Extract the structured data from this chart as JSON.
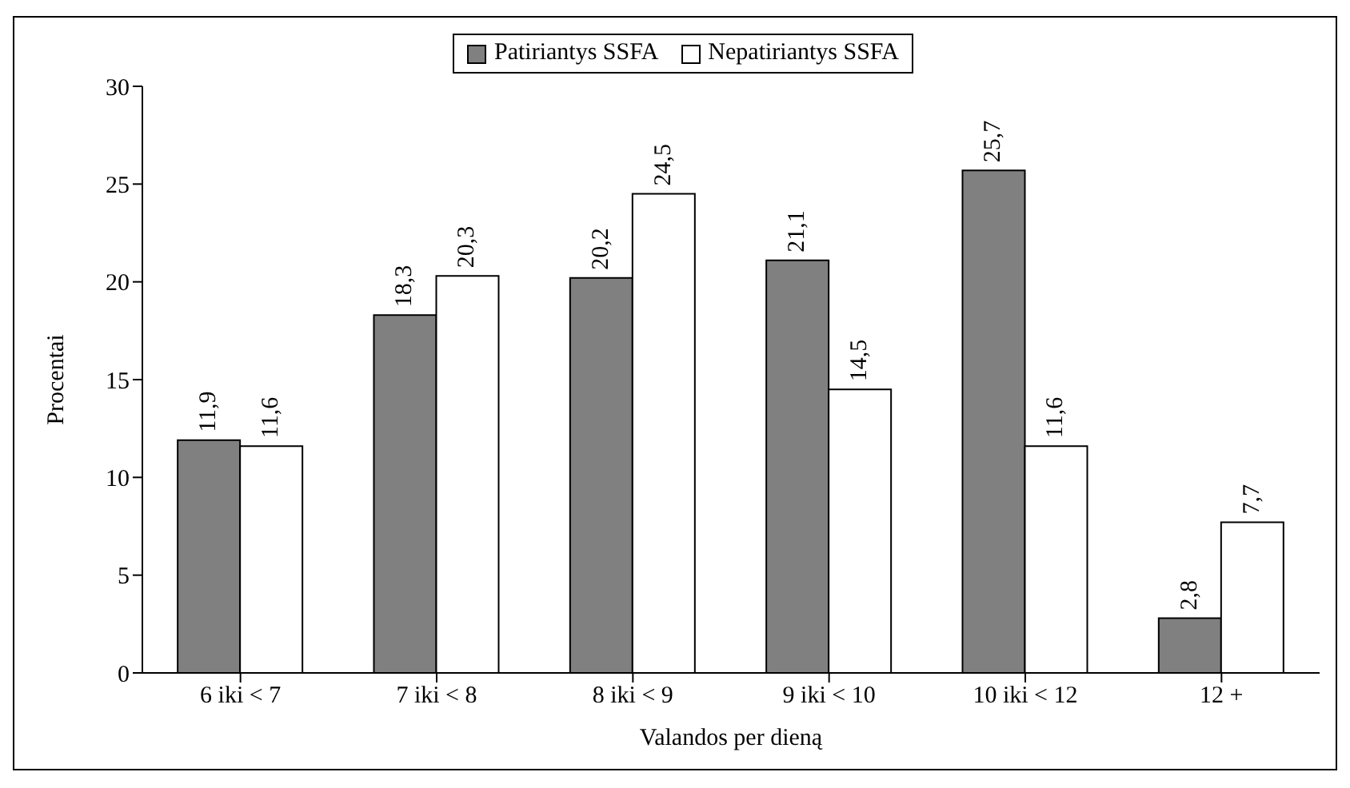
{
  "chart_data": {
    "type": "bar",
    "xlabel": "Valandos per dieną",
    "ylabel": "Procentai",
    "categories": [
      "6 iki < 7",
      "7 iki < 8",
      "8 iki < 9",
      "9 iki < 10",
      "10 iki < 12",
      "12 +"
    ],
    "series": [
      {
        "name": "Patiriantys SSFA",
        "color": "#808080",
        "values": [
          11.9,
          18.3,
          20.2,
          21.1,
          25.7,
          2.8
        ],
        "value_labels": [
          "11,9",
          "18,3",
          "20,2",
          "21,1",
          "25,7",
          "2,8"
        ]
      },
      {
        "name": "Nepatiriantys SSFA",
        "color": "#ffffff",
        "values": [
          11.6,
          20.3,
          24.5,
          14.5,
          11.6,
          7.7
        ],
        "value_labels": [
          "11,6",
          "20,3",
          "24,5",
          "14,5",
          "11,6",
          "7,7"
        ]
      }
    ],
    "ylim": [
      0,
      30
    ],
    "yticks": [
      0,
      5,
      10,
      15,
      20,
      25,
      30
    ],
    "legend": "top"
  }
}
